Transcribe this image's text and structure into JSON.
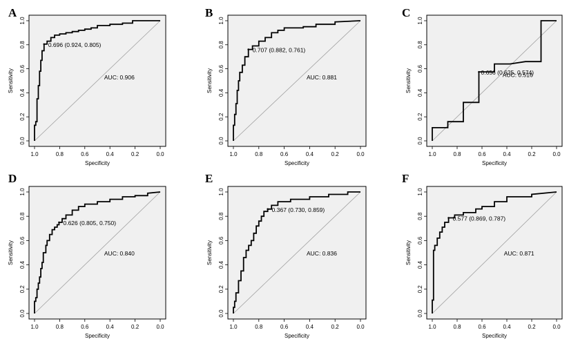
{
  "figure": {
    "background": "#ffffff",
    "plot_bg": "#f0f0f0",
    "curve_color": "#000000",
    "diag_color": "#a0a0a0"
  },
  "chart_data": [
    {
      "type": "line",
      "panel": "A",
      "xlabel": "Specificity",
      "ylabel": "Sensitivity",
      "xlim": [
        1.0,
        0.0
      ],
      "ylim": [
        0.0,
        1.0
      ],
      "x_ticks": [
        "1.0",
        "0.8",
        "0.6",
        "0.4",
        "0.2",
        "0.0"
      ],
      "y_ticks": [
        "0.0",
        "0.2",
        "0.4",
        "0.6",
        "0.8",
        "1.0"
      ],
      "auc_label": "AUC: 0.906",
      "threshold_label": "0.696 (0.924, 0.805)",
      "threshold_point": [
        0.924,
        0.805
      ],
      "roc": {
        "specificity": [
          1.0,
          1.0,
          0.99,
          0.99,
          0.98,
          0.98,
          0.97,
          0.97,
          0.96,
          0.96,
          0.95,
          0.95,
          0.94,
          0.94,
          0.924,
          0.924,
          0.9,
          0.9,
          0.87,
          0.87,
          0.84,
          0.84,
          0.8,
          0.8,
          0.75,
          0.75,
          0.7,
          0.7,
          0.65,
          0.65,
          0.6,
          0.6,
          0.55,
          0.55,
          0.5,
          0.5,
          0.4,
          0.4,
          0.3,
          0.3,
          0.22,
          0.22,
          0.0
        ],
        "sensitivity": [
          0.0,
          0.13,
          0.13,
          0.16,
          0.16,
          0.35,
          0.35,
          0.46,
          0.46,
          0.58,
          0.58,
          0.67,
          0.67,
          0.75,
          0.75,
          0.805,
          0.805,
          0.83,
          0.83,
          0.86,
          0.86,
          0.88,
          0.88,
          0.89,
          0.89,
          0.9,
          0.9,
          0.91,
          0.91,
          0.92,
          0.92,
          0.93,
          0.93,
          0.94,
          0.94,
          0.96,
          0.96,
          0.97,
          0.97,
          0.98,
          0.98,
          1.0,
          1.0
        ]
      }
    },
    {
      "type": "line",
      "panel": "B",
      "xlabel": "Specificity",
      "ylabel": "Sensitivity",
      "xlim": [
        1.0,
        0.0
      ],
      "ylim": [
        0.0,
        1.0
      ],
      "x_ticks": [
        "1.0",
        "0.8",
        "0.6",
        "0.4",
        "0.2",
        "0.0"
      ],
      "y_ticks": [
        "0.0",
        "0.2",
        "0.4",
        "0.6",
        "0.8",
        "1.0"
      ],
      "auc_label": "AUC: 0.881",
      "threshold_label": "0.707 (0.882, 0.761)",
      "threshold_point": [
        0.882,
        0.761
      ],
      "roc": {
        "specificity": [
          1.0,
          1.0,
          0.99,
          0.99,
          0.98,
          0.98,
          0.97,
          0.97,
          0.96,
          0.96,
          0.95,
          0.95,
          0.93,
          0.93,
          0.91,
          0.91,
          0.882,
          0.882,
          0.85,
          0.85,
          0.8,
          0.8,
          0.75,
          0.75,
          0.7,
          0.7,
          0.65,
          0.65,
          0.6,
          0.6,
          0.45,
          0.45,
          0.35,
          0.35,
          0.2,
          0.2,
          0.0
        ],
        "sensitivity": [
          0.0,
          0.13,
          0.13,
          0.22,
          0.22,
          0.31,
          0.31,
          0.42,
          0.42,
          0.5,
          0.5,
          0.57,
          0.57,
          0.63,
          0.63,
          0.7,
          0.7,
          0.761,
          0.761,
          0.79,
          0.79,
          0.83,
          0.83,
          0.86,
          0.86,
          0.9,
          0.9,
          0.92,
          0.92,
          0.94,
          0.94,
          0.95,
          0.95,
          0.97,
          0.97,
          0.99,
          1.0
        ]
      }
    },
    {
      "type": "line",
      "panel": "C",
      "xlabel": "Specificity",
      "ylabel": "Sensitivity",
      "xlim": [
        1.0,
        0.0
      ],
      "ylim": [
        0.0,
        1.0
      ],
      "x_ticks": [
        "1.0",
        "0.8",
        "0.6",
        "0.4",
        "0.2",
        "0.0"
      ],
      "y_ticks": [
        "0.0",
        "0.2",
        "0.4",
        "0.6",
        "0.8",
        "1.0"
      ],
      "auc_label": "AUC: 0.516",
      "threshold_label": "0.656 (0.625, 0.574)",
      "threshold_point": [
        0.625,
        0.574
      ],
      "roc": {
        "specificity": [
          1.0,
          1.0,
          0.875,
          0.875,
          0.75,
          0.75,
          0.625,
          0.625,
          0.5,
          0.5,
          0.375,
          0.25,
          0.125,
          0.125,
          0.0
        ],
        "sensitivity": [
          0.0,
          0.11,
          0.11,
          0.16,
          0.16,
          0.32,
          0.32,
          0.574,
          0.574,
          0.64,
          0.64,
          0.66,
          0.66,
          1.0,
          1.0
        ]
      }
    },
    {
      "type": "line",
      "panel": "D",
      "xlabel": "Specificity",
      "ylabel": "Sensitivity",
      "xlim": [
        1.0,
        0.0
      ],
      "ylim": [
        0.0,
        1.0
      ],
      "x_ticks": [
        "1.0",
        "0.8",
        "0.6",
        "0.4",
        "0.2",
        "0.0"
      ],
      "y_ticks": [
        "0.0",
        "0.2",
        "0.4",
        "0.6",
        "0.8",
        "1.0"
      ],
      "auc_label": "AUC: 0.840",
      "threshold_label": "0.626 (0.805, 0.750)",
      "threshold_point": [
        0.805,
        0.75
      ],
      "roc": {
        "specificity": [
          1.0,
          1.0,
          0.99,
          0.99,
          0.98,
          0.98,
          0.97,
          0.97,
          0.96,
          0.96,
          0.95,
          0.95,
          0.94,
          0.94,
          0.93,
          0.93,
          0.91,
          0.91,
          0.9,
          0.9,
          0.88,
          0.88,
          0.86,
          0.86,
          0.84,
          0.84,
          0.82,
          0.82,
          0.805,
          0.805,
          0.78,
          0.78,
          0.75,
          0.75,
          0.7,
          0.7,
          0.65,
          0.65,
          0.6,
          0.6,
          0.5,
          0.5,
          0.4,
          0.4,
          0.3,
          0.3,
          0.2,
          0.2,
          0.1,
          0.1,
          0.0
        ],
        "sensitivity": [
          0.0,
          0.1,
          0.1,
          0.13,
          0.13,
          0.2,
          0.2,
          0.25,
          0.25,
          0.3,
          0.3,
          0.37,
          0.37,
          0.42,
          0.42,
          0.5,
          0.5,
          0.56,
          0.56,
          0.6,
          0.6,
          0.65,
          0.65,
          0.69,
          0.69,
          0.71,
          0.71,
          0.73,
          0.73,
          0.75,
          0.75,
          0.78,
          0.78,
          0.81,
          0.81,
          0.85,
          0.85,
          0.88,
          0.88,
          0.9,
          0.9,
          0.92,
          0.92,
          0.94,
          0.94,
          0.96,
          0.96,
          0.97,
          0.97,
          0.99,
          1.0
        ]
      }
    },
    {
      "type": "line",
      "panel": "E",
      "xlabel": "Specificity",
      "ylabel": "Sensitivity",
      "xlim": [
        1.0,
        0.0
      ],
      "ylim": [
        0.0,
        1.0
      ],
      "x_ticks": [
        "1.0",
        "0.8",
        "0.6",
        "0.4",
        "0.2",
        "0.0"
      ],
      "y_ticks": [
        "0.0",
        "0.2",
        "0.4",
        "0.6",
        "0.8",
        "1.0"
      ],
      "auc_label": "AUC: 0.836",
      "threshold_label": "0.367 (0.730, 0.859)",
      "threshold_point": [
        0.73,
        0.859
      ],
      "roc": {
        "specificity": [
          1.0,
          1.0,
          0.99,
          0.99,
          0.98,
          0.98,
          0.96,
          0.96,
          0.94,
          0.94,
          0.92,
          0.92,
          0.9,
          0.9,
          0.88,
          0.88,
          0.86,
          0.86,
          0.84,
          0.84,
          0.82,
          0.82,
          0.8,
          0.8,
          0.78,
          0.78,
          0.76,
          0.76,
          0.73,
          0.73,
          0.7,
          0.7,
          0.65,
          0.65,
          0.55,
          0.55,
          0.4,
          0.4,
          0.25,
          0.25,
          0.1,
          0.1,
          0.0
        ],
        "sensitivity": [
          0.0,
          0.05,
          0.05,
          0.1,
          0.1,
          0.17,
          0.17,
          0.27,
          0.27,
          0.35,
          0.35,
          0.46,
          0.46,
          0.52,
          0.52,
          0.56,
          0.56,
          0.6,
          0.6,
          0.66,
          0.66,
          0.72,
          0.72,
          0.76,
          0.76,
          0.8,
          0.8,
          0.84,
          0.84,
          0.859,
          0.859,
          0.89,
          0.89,
          0.92,
          0.92,
          0.94,
          0.94,
          0.96,
          0.96,
          0.98,
          0.98,
          1.0,
          1.0
        ]
      }
    },
    {
      "type": "line",
      "panel": "F",
      "xlabel": "Specificity",
      "ylabel": "Sensitivity",
      "xlim": [
        1.0,
        0.0
      ],
      "ylim": [
        0.0,
        1.0
      ],
      "x_ticks": [
        "1.0",
        "0.8",
        "0.6",
        "0.4",
        "0.2",
        "0.0"
      ],
      "y_ticks": [
        "0.0",
        "0.2",
        "0.4",
        "0.6",
        "0.8",
        "1.0"
      ],
      "auc_label": "AUC: 0.871",
      "threshold_label": "0.577 (0.869, 0.787)",
      "threshold_point": [
        0.869,
        0.787
      ],
      "roc": {
        "specificity": [
          1.0,
          1.0,
          0.99,
          0.99,
          0.98,
          0.98,
          0.96,
          0.96,
          0.94,
          0.94,
          0.92,
          0.92,
          0.9,
          0.9,
          0.869,
          0.869,
          0.82,
          0.82,
          0.75,
          0.75,
          0.65,
          0.65,
          0.6,
          0.6,
          0.5,
          0.5,
          0.4,
          0.4,
          0.2,
          0.2,
          0.0
        ],
        "sensitivity": [
          0.0,
          0.11,
          0.11,
          0.52,
          0.52,
          0.56,
          0.56,
          0.62,
          0.62,
          0.67,
          0.67,
          0.71,
          0.71,
          0.75,
          0.75,
          0.787,
          0.787,
          0.81,
          0.81,
          0.83,
          0.83,
          0.86,
          0.86,
          0.88,
          0.88,
          0.92,
          0.92,
          0.96,
          0.96,
          0.98,
          1.0
        ]
      }
    }
  ]
}
